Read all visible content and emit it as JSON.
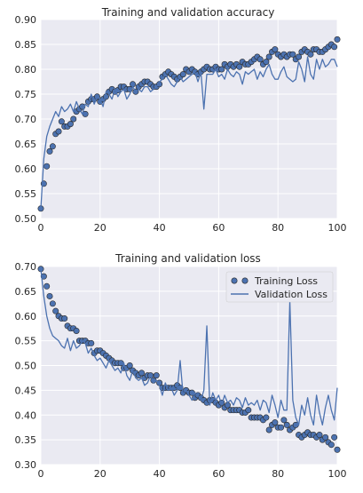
{
  "colors": {
    "series": "#4c72b0",
    "marker_edge": "#2a2a2a",
    "plot_bg": "#eaeaf2",
    "grid": "#ffffff"
  },
  "chart_data": [
    {
      "type": "line",
      "title": "Training and validation accuracy",
      "xlabel": "",
      "ylabel": "",
      "xlim": [
        0,
        100
      ],
      "ylim": [
        0.5,
        0.9
      ],
      "xticks": [
        0,
        20,
        40,
        60,
        80,
        100
      ],
      "yticks": [
        0.5,
        0.55,
        0.6,
        0.65,
        0.7,
        0.75,
        0.8,
        0.85,
        0.9
      ],
      "ytick_labels": [
        "0.50",
        "0.55",
        "0.60",
        "0.65",
        "0.70",
        "0.75",
        "0.80",
        "0.85",
        "0.90"
      ],
      "grid": true,
      "legend": null,
      "series": [
        {
          "style": "markers",
          "values": [
            0.52,
            0.57,
            0.605,
            0.635,
            0.645,
            0.67,
            0.675,
            0.695,
            0.685,
            0.685,
            0.69,
            0.7,
            0.715,
            0.72,
            0.725,
            0.71,
            0.735,
            0.74,
            0.74,
            0.745,
            0.735,
            0.74,
            0.745,
            0.755,
            0.76,
            0.755,
            0.758,
            0.765,
            0.765,
            0.76,
            0.76,
            0.77,
            0.755,
            0.765,
            0.77,
            0.775,
            0.775,
            0.77,
            0.765,
            0.765,
            0.77,
            0.785,
            0.79,
            0.795,
            0.79,
            0.785,
            0.78,
            0.785,
            0.79,
            0.8,
            0.795,
            0.8,
            0.795,
            0.79,
            0.795,
            0.8,
            0.805,
            0.8,
            0.8,
            0.805,
            0.8,
            0.8,
            0.81,
            0.805,
            0.81,
            0.805,
            0.81,
            0.805,
            0.815,
            0.81,
            0.81,
            0.815,
            0.82,
            0.825,
            0.82,
            0.81,
            0.815,
            0.825,
            0.835,
            0.84,
            0.83,
            0.825,
            0.83,
            0.825,
            0.83,
            0.83,
            0.82,
            0.825,
            0.835,
            0.84,
            0.835,
            0.83,
            0.84,
            0.84,
            0.835,
            0.835,
            0.84,
            0.845,
            0.85,
            0.845,
            0.86
          ]
        },
        {
          "style": "line",
          "values": [
            0.52,
            0.62,
            0.665,
            0.685,
            0.7,
            0.715,
            0.705,
            0.725,
            0.715,
            0.72,
            0.73,
            0.715,
            0.735,
            0.72,
            0.71,
            0.73,
            0.725,
            0.75,
            0.73,
            0.745,
            0.74,
            0.725,
            0.755,
            0.75,
            0.74,
            0.76,
            0.745,
            0.755,
            0.76,
            0.74,
            0.75,
            0.765,
            0.755,
            0.76,
            0.755,
            0.765,
            0.765,
            0.755,
            0.76,
            0.765,
            0.775,
            0.78,
            0.79,
            0.78,
            0.77,
            0.765,
            0.775,
            0.785,
            0.775,
            0.78,
            0.785,
            0.79,
            0.795,
            0.775,
            0.795,
            0.72,
            0.79,
            0.79,
            0.79,
            0.8,
            0.785,
            0.79,
            0.78,
            0.8,
            0.79,
            0.785,
            0.795,
            0.79,
            0.77,
            0.795,
            0.79,
            0.795,
            0.8,
            0.78,
            0.795,
            0.785,
            0.8,
            0.81,
            0.79,
            0.78,
            0.78,
            0.795,
            0.805,
            0.785,
            0.78,
            0.775,
            0.78,
            0.815,
            0.8,
            0.775,
            0.825,
            0.79,
            0.78,
            0.82,
            0.8,
            0.82,
            0.805,
            0.81,
            0.82,
            0.82,
            0.805
          ]
        }
      ]
    },
    {
      "type": "line",
      "title": "Training and validation loss",
      "xlabel": "",
      "ylabel": "",
      "xlim": [
        0,
        100
      ],
      "ylim": [
        0.3,
        0.7
      ],
      "xticks": [
        0,
        20,
        40,
        60,
        80,
        100
      ],
      "yticks": [
        0.3,
        0.35,
        0.4,
        0.45,
        0.5,
        0.55,
        0.6,
        0.65,
        0.7
      ],
      "ytick_labels": [
        "0.30",
        "0.35",
        "0.40",
        "0.45",
        "0.50",
        "0.55",
        "0.60",
        "0.65",
        "0.70"
      ],
      "grid": true,
      "legend": "top-right",
      "series": [
        {
          "name": "Training Loss",
          "style": "markers",
          "values": [
            0.695,
            0.68,
            0.66,
            0.64,
            0.625,
            0.61,
            0.6,
            0.595,
            0.595,
            0.58,
            0.575,
            0.575,
            0.57,
            0.55,
            0.55,
            0.55,
            0.545,
            0.545,
            0.525,
            0.53,
            0.53,
            0.525,
            0.52,
            0.515,
            0.51,
            0.505,
            0.505,
            0.505,
            0.495,
            0.495,
            0.5,
            0.49,
            0.485,
            0.48,
            0.485,
            0.475,
            0.48,
            0.48,
            0.47,
            0.48,
            0.465,
            0.455,
            0.455,
            0.455,
            0.455,
            0.455,
            0.46,
            0.455,
            0.445,
            0.45,
            0.445,
            0.445,
            0.435,
            0.44,
            0.435,
            0.43,
            0.425,
            0.43,
            0.43,
            0.425,
            0.42,
            0.425,
            0.415,
            0.42,
            0.41,
            0.41,
            0.41,
            0.41,
            0.405,
            0.405,
            0.41,
            0.395,
            0.395,
            0.395,
            0.395,
            0.39,
            0.395,
            0.37,
            0.38,
            0.385,
            0.375,
            0.375,
            0.39,
            0.38,
            0.37,
            0.375,
            0.38,
            0.36,
            0.355,
            0.36,
            0.365,
            0.36,
            0.36,
            0.355,
            0.36,
            0.35,
            0.355,
            0.345,
            0.34,
            0.355,
            0.33
          ]
        },
        {
          "name": "Validation Loss",
          "style": "line",
          "values": [
            0.695,
            0.64,
            0.6,
            0.575,
            0.56,
            0.555,
            0.55,
            0.54,
            0.535,
            0.555,
            0.53,
            0.55,
            0.535,
            0.54,
            0.55,
            0.545,
            0.525,
            0.535,
            0.52,
            0.51,
            0.515,
            0.505,
            0.495,
            0.51,
            0.5,
            0.49,
            0.495,
            0.485,
            0.505,
            0.48,
            0.47,
            0.49,
            0.475,
            0.47,
            0.475,
            0.46,
            0.465,
            0.48,
            0.465,
            0.47,
            0.46,
            0.44,
            0.465,
            0.45,
            0.455,
            0.44,
            0.45,
            0.51,
            0.44,
            0.45,
            0.44,
            0.43,
            0.445,
            0.44,
            0.43,
            0.45,
            0.58,
            0.42,
            0.445,
            0.43,
            0.44,
            0.42,
            0.44,
            0.425,
            0.43,
            0.42,
            0.435,
            0.43,
            0.415,
            0.435,
            0.42,
            0.425,
            0.42,
            0.43,
            0.41,
            0.43,
            0.425,
            0.405,
            0.44,
            0.42,
            0.395,
            0.43,
            0.41,
            0.41,
            0.63,
            0.43,
            0.395,
            0.38,
            0.42,
            0.4,
            0.435,
            0.4,
            0.38,
            0.44,
            0.405,
            0.38,
            0.415,
            0.44,
            0.41,
            0.39,
            0.455
          ]
        }
      ]
    }
  ]
}
